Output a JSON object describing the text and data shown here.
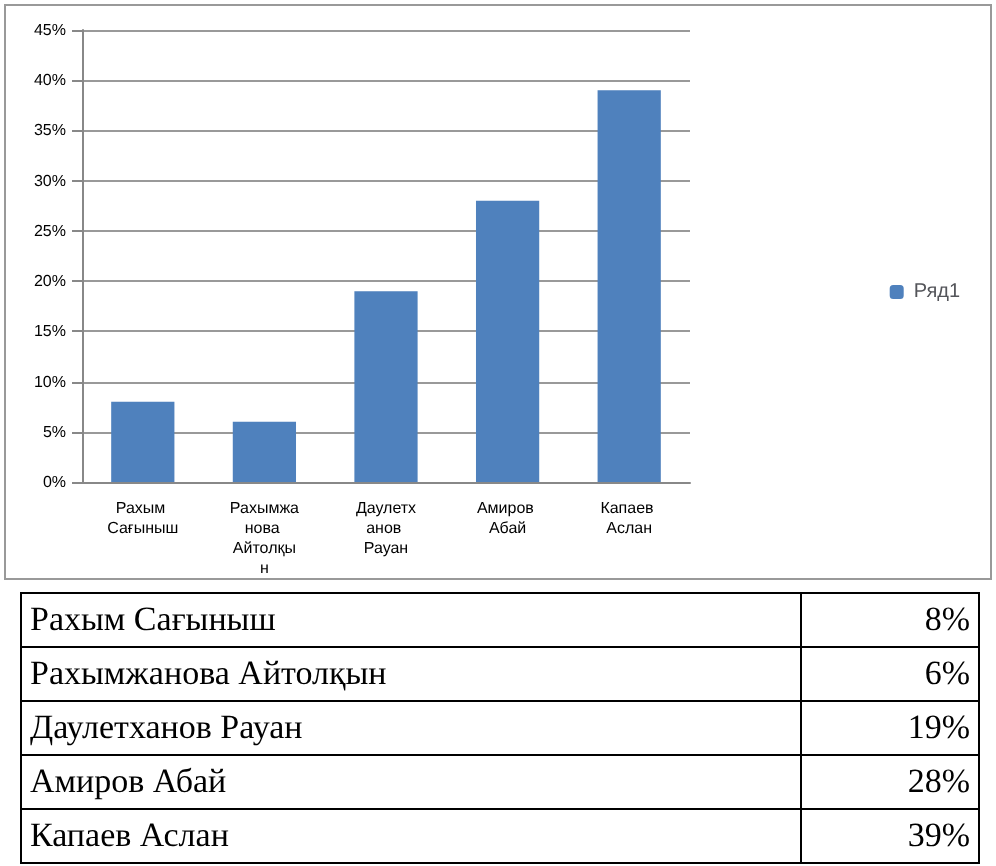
{
  "chart_data": [
    {
      "type": "bar",
      "categories": [
        "Рахым Сағыныш",
        "Рахымжанова Айтолқын",
        "Даулетханов Рауан",
        "Амиров Абай",
        "Капаев Аслан"
      ],
      "series": [
        {
          "name": "Ряд1",
          "color": "#4f81bd",
          "values": [
            8,
            6,
            19,
            28,
            39
          ]
        }
      ],
      "ylim": [
        0,
        45
      ],
      "yticks": [
        {
          "value": 0,
          "label": "0%"
        },
        {
          "value": 5,
          "label": "5%"
        },
        {
          "value": 10,
          "label": "10%"
        },
        {
          "value": 15,
          "label": "15%"
        },
        {
          "value": 20,
          "label": "20%"
        },
        {
          "value": 25,
          "label": "25%"
        },
        {
          "value": 30,
          "label": "30%"
        },
        {
          "value": 35,
          "label": "35%"
        },
        {
          "value": 40,
          "label": "40%"
        },
        {
          "value": 45,
          "label": "45%"
        }
      ],
      "grid": "y",
      "legend": "right"
    },
    {
      "type": "other",
      "annotations": [
        "Рахым Сағыныш",
        "8%",
        "Рахымжанова Айтолқын",
        "6%",
        "Даулетханов Рауан",
        "19%",
        "Амиров Абай",
        "28%",
        "Капаев Аслан",
        "39%"
      ]
    }
  ]
}
